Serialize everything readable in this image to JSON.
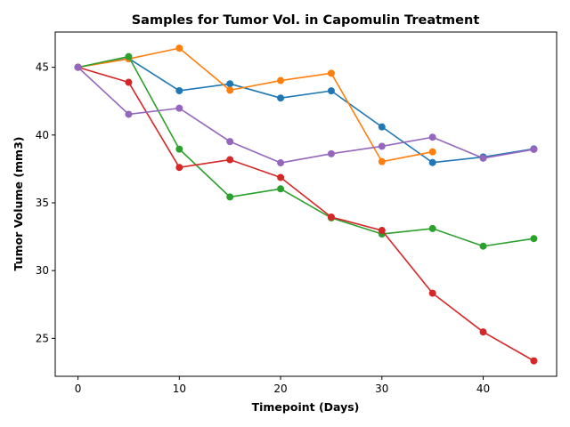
{
  "chart_data": {
    "type": "line",
    "title": "Samples for Tumor Vol. in Capomulin Treatment",
    "xlabel": "Timepoint (Days)",
    "ylabel": "Tumor Volume (mm3)",
    "xlim": [
      -2.25,
      47.25
    ],
    "ylim": [
      22.2,
      47.6
    ],
    "x_ticks": [
      0,
      10,
      20,
      30,
      40
    ],
    "y_ticks": [
      25,
      30,
      35,
      40,
      45
    ],
    "grid": false,
    "legend": "none",
    "marker": "circle",
    "series": [
      {
        "color": "#1f77b4",
        "points": [
          [
            0,
            45.0
          ],
          [
            5,
            45.65
          ],
          [
            10,
            43.27
          ],
          [
            15,
            43.78
          ],
          [
            20,
            42.73
          ],
          [
            25,
            43.26
          ],
          [
            30,
            40.6
          ],
          [
            35,
            37.97
          ],
          [
            40,
            38.38
          ],
          [
            45,
            38.98
          ]
        ]
      },
      {
        "color": "#ff7f0e",
        "points": [
          [
            0,
            45.0
          ],
          [
            5,
            45.62
          ],
          [
            10,
            46.41
          ],
          [
            15,
            43.31
          ],
          [
            20,
            44.02
          ],
          [
            25,
            44.56
          ],
          [
            30,
            38.04
          ],
          [
            35,
            38.76
          ]
        ]
      },
      {
        "color": "#2ca02c",
        "points": [
          [
            0,
            45.0
          ],
          [
            5,
            45.79
          ],
          [
            10,
            38.96
          ],
          [
            15,
            35.43
          ],
          [
            20,
            36.03
          ],
          [
            25,
            33.89
          ],
          [
            30,
            32.7
          ],
          [
            35,
            33.1
          ],
          [
            40,
            31.8
          ],
          [
            45,
            32.36
          ]
        ]
      },
      {
        "color": "#d62728",
        "points": [
          [
            0,
            45.0
          ],
          [
            5,
            43.89
          ],
          [
            10,
            37.61
          ],
          [
            15,
            38.18
          ],
          [
            20,
            36.87
          ],
          [
            25,
            33.95
          ],
          [
            30,
            32.96
          ],
          [
            35,
            28.33
          ],
          [
            40,
            25.47
          ],
          [
            45,
            23.34
          ]
        ]
      },
      {
        "color": "#9467bd",
        "points": [
          [
            0,
            45.0
          ],
          [
            5,
            41.53
          ],
          [
            10,
            41.98
          ],
          [
            15,
            39.52
          ],
          [
            20,
            37.95
          ],
          [
            25,
            38.62
          ],
          [
            30,
            39.17
          ],
          [
            35,
            39.84
          ],
          [
            40,
            38.29
          ],
          [
            45,
            38.94
          ]
        ]
      }
    ]
  }
}
